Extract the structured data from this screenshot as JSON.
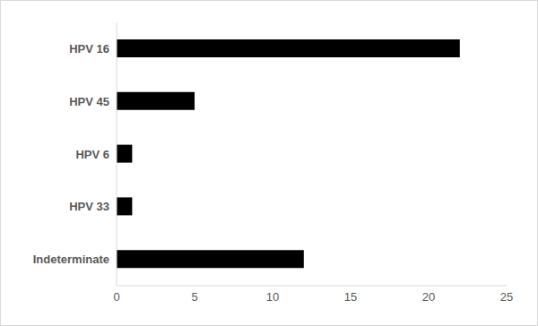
{
  "chart_data": {
    "type": "bar",
    "orientation": "horizontal",
    "categories": [
      "HPV 16",
      "HPV 45",
      "HPV 6",
      "HPV 33",
      "Indeterminate"
    ],
    "values": [
      22,
      5,
      1,
      1,
      12
    ],
    "color": "#000000",
    "xlim": [
      0,
      25
    ],
    "xticks": [
      0,
      5,
      10,
      15,
      20,
      25
    ],
    "grid": false
  }
}
